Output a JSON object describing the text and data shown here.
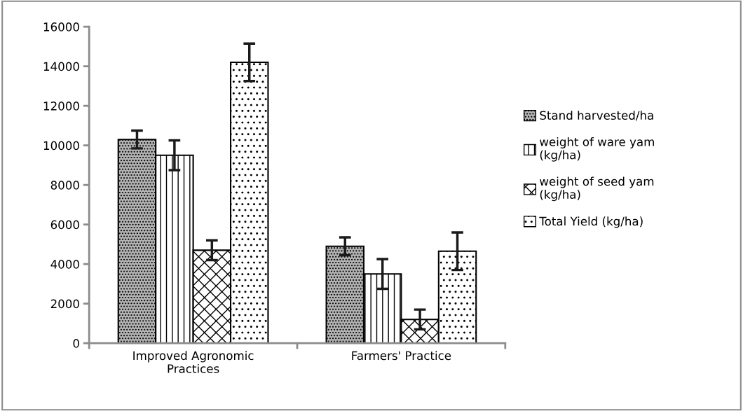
{
  "chart_data": {
    "type": "bar",
    "categories": [
      "Improved Agronomic\nPractices",
      "Farmers' Practice"
    ],
    "series": [
      {
        "name": "Stand harvested/ha",
        "color": "#000000",
        "values": [
          10300,
          4900
        ],
        "errors": [
          450,
          450
        ]
      },
      {
        "name": "weight of ware yam\n(kg/ha)",
        "color": "#000000",
        "values": [
          9500,
          3500
        ],
        "errors": [
          750,
          750
        ]
      },
      {
        "name": "weight of seed yam\n(kg/ha)",
        "color": "#000000",
        "values": [
          4700,
          1200
        ],
        "errors": [
          500,
          500
        ]
      },
      {
        "name": "Total Yield (kg/ha)",
        "color": "#000000",
        "values": [
          14200,
          4650
        ],
        "errors": [
          950,
          950
        ]
      }
    ],
    "ylim": [
      0,
      16000
    ],
    "yticks": [
      0,
      2000,
      4000,
      6000,
      8000,
      10000,
      12000,
      14000,
      16000
    ],
    "grid": false,
    "legend": "right"
  }
}
